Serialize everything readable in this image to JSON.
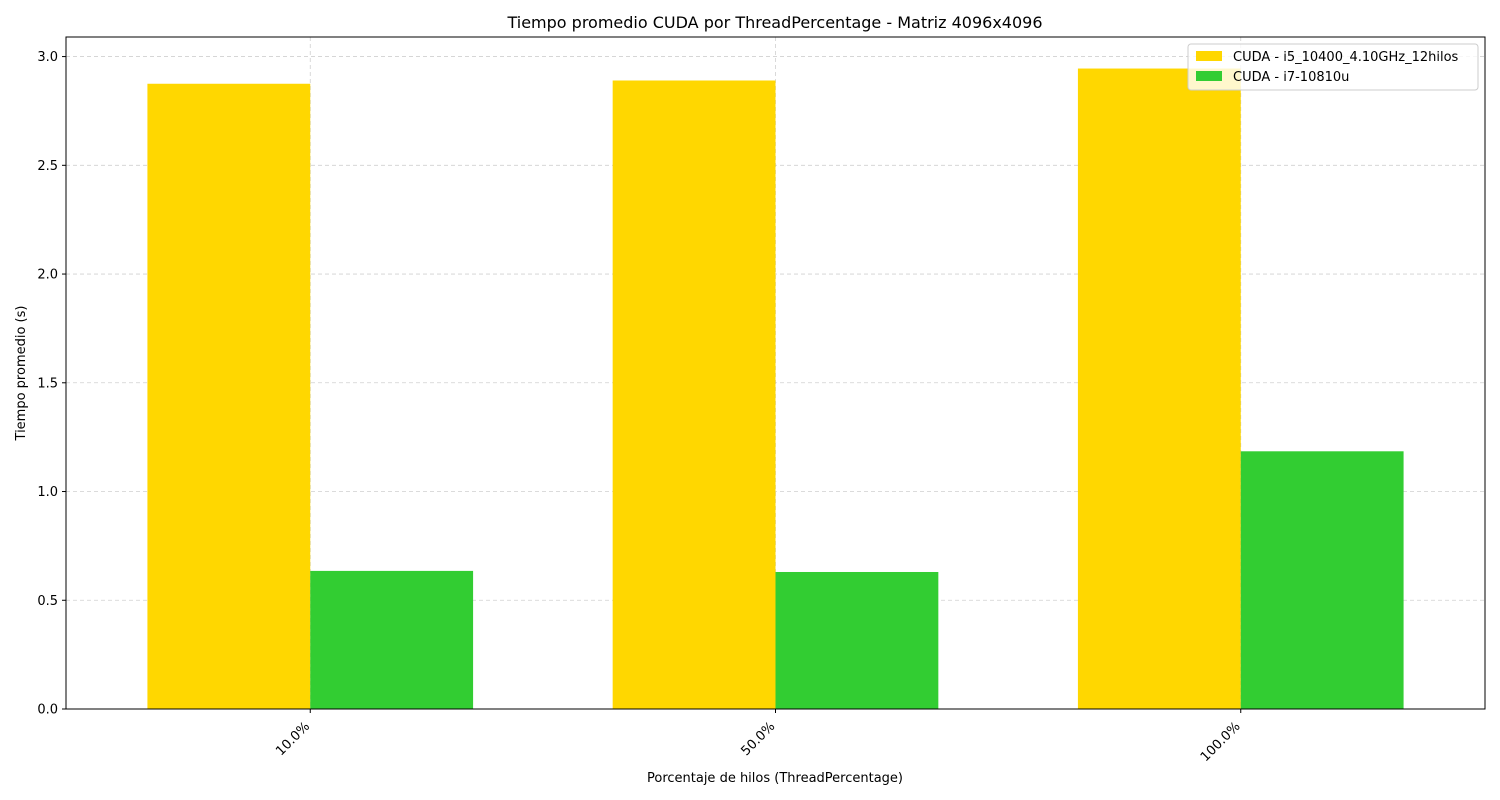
{
  "chart_data": {
    "type": "bar",
    "title": "Tiempo promedio CUDA por ThreadPercentage - Matriz 4096x4096",
    "xlabel": "Porcentaje de hilos (ThreadPercentage)",
    "ylabel": "Tiempo promedio (s)",
    "categories": [
      "10.0%",
      "50.0%",
      "100.0%"
    ],
    "series": [
      {
        "name": "CUDA - i5_10400_4.10GHz_12hilos",
        "color": "#ffd700",
        "values": [
          2.875,
          2.89,
          2.945
        ]
      },
      {
        "name": "CUDA - i7-10810u",
        "color": "#32cd32",
        "values": [
          0.635,
          0.63,
          1.185
        ]
      }
    ],
    "ylim": [
      0,
      3.09
    ],
    "yticks": [
      "0.0",
      "0.5",
      "1.0",
      "1.5",
      "2.0",
      "2.5",
      "3.0"
    ],
    "grid": true,
    "legend_position": "top-right"
  }
}
